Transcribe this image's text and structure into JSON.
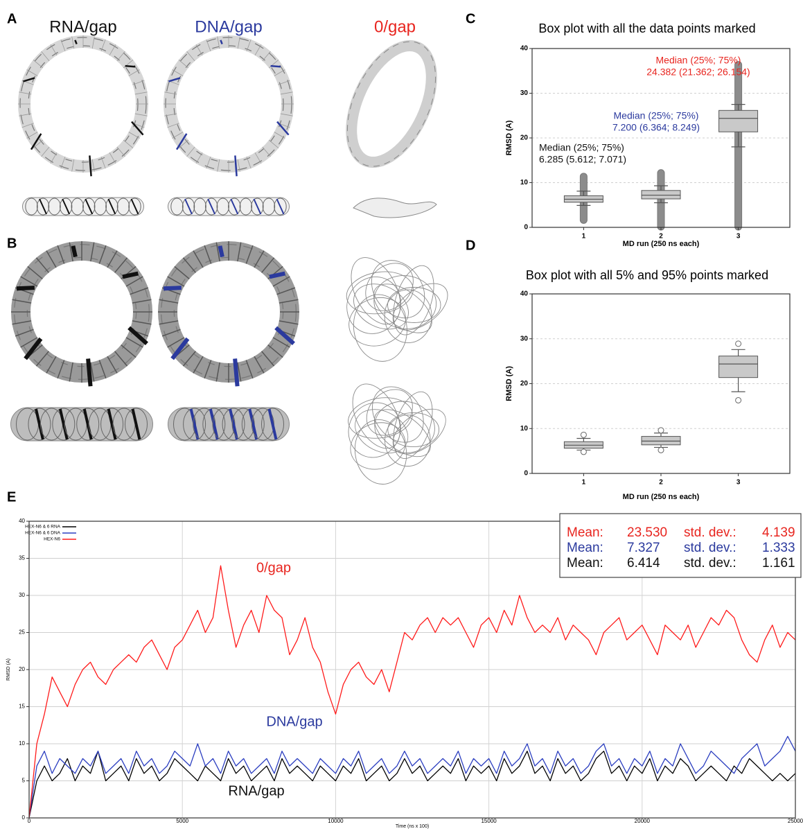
{
  "panel_labels": [
    "A",
    "B",
    "C",
    "D",
    "E"
  ],
  "structure_labels": [
    {
      "text": "RNA/gap",
      "color": "#111111"
    },
    {
      "text": "DNA/gap",
      "color": "#2b3a9e"
    },
    {
      "text": "0/gap",
      "color": "#e8251f"
    }
  ],
  "stats_box": {
    "rows": [
      {
        "color": "#e8251f",
        "cells": [
          "Mean:",
          "23.530",
          "std. dev.:",
          "4.139"
        ]
      },
      {
        "color": "#2b3a9e",
        "cells": [
          "Mean:",
          "7.327",
          "std. dev.:",
          "1.333"
        ]
      },
      {
        "color": "#111111",
        "cells": [
          "Mean:",
          "6.414",
          "std. dev.:",
          "1.161"
        ]
      }
    ]
  },
  "chart_data": [
    {
      "type": "box",
      "title": "Box plot with all the data points marked",
      "xlabel": "MD run (250 ns each)",
      "ylabel": "RMSD (A)",
      "categories": [
        "1",
        "2",
        "3"
      ],
      "ylim": [
        0,
        40
      ],
      "yticks": [
        0,
        10,
        20,
        30,
        40
      ],
      "grid": true,
      "color": "#c9c9c9",
      "boxes": [
        {
          "median": 6.285,
          "q1": 5.612,
          "q3": 7.071,
          "whisker_low": 4.9,
          "whisker_high": 8.1,
          "points_range": [
            1.5,
            11.5
          ]
        },
        {
          "median": 7.2,
          "q1": 6.364,
          "q3": 8.249,
          "whisker_low": 5.5,
          "whisker_high": 9.3,
          "points_range": [
            0,
            12.3
          ]
        },
        {
          "median": 24.382,
          "q1": 21.362,
          "q3": 26.154,
          "whisker_low": 18,
          "whisker_high": 27.5,
          "points_range": [
            0,
            36.5
          ]
        }
      ],
      "annotations": [
        {
          "text": "Median (25%; 75%)",
          "value_text": "6.285 (5.612; 7.071)",
          "color": "#111111"
        },
        {
          "text": "Median (25%; 75%)",
          "value_text": "7.200 (6.364; 8.249)",
          "color": "#2b3a9e"
        },
        {
          "text": "Median (25%; 75%)",
          "value_text": "24.382 (21.362; 26.154)",
          "color": "#e8251f"
        }
      ]
    },
    {
      "type": "box",
      "title": "Box plot with all 5% and 95% points marked",
      "xlabel": "MD run (250 ns each)",
      "ylabel": "RMSD (A)",
      "categories": [
        "1",
        "2",
        "3"
      ],
      "ylim": [
        0,
        40
      ],
      "yticks": [
        0,
        10,
        20,
        30,
        40
      ],
      "grid": true,
      "color": "#c9c9c9",
      "boxes": [
        {
          "median": 6.285,
          "q1": 5.612,
          "q3": 7.071,
          "whisker_low": 5.2,
          "whisker_high": 7.8,
          "outliers": [
            4.8,
            8.6
          ]
        },
        {
          "median": 7.2,
          "q1": 6.364,
          "q3": 8.249,
          "whisker_low": 5.8,
          "whisker_high": 9.0,
          "outliers": [
            5.2,
            9.6
          ]
        },
        {
          "median": 24.382,
          "q1": 21.362,
          "q3": 26.154,
          "whisker_low": 18.2,
          "whisker_high": 27.6,
          "outliers": [
            16.3,
            28.9
          ]
        }
      ]
    },
    {
      "type": "line",
      "xlabel": "Time (ns x 100)",
      "ylabel": "RMSD (A)",
      "xlim": [
        0,
        25000
      ],
      "ylim": [
        0,
        40
      ],
      "xticks": [
        0,
        5000,
        10000,
        15000,
        20000,
        25000
      ],
      "yticks": [
        0,
        5,
        10,
        15,
        20,
        25,
        30,
        35,
        40
      ],
      "grid": true,
      "legend": "upper left",
      "x": [
        0,
        250,
        500,
        750,
        1000,
        1250,
        1500,
        1750,
        2000,
        2250,
        2500,
        2750,
        3000,
        3250,
        3500,
        3750,
        4000,
        4250,
        4500,
        4750,
        5000,
        5250,
        5500,
        5750,
        6000,
        6250,
        6500,
        6750,
        7000,
        7250,
        7500,
        7750,
        8000,
        8250,
        8500,
        8750,
        9000,
        9250,
        9500,
        9750,
        10000,
        10250,
        10500,
        10750,
        11000,
        11250,
        11500,
        11750,
        12000,
        12250,
        12500,
        12750,
        13000,
        13250,
        13500,
        13750,
        14000,
        14250,
        14500,
        14750,
        15000,
        15250,
        15500,
        15750,
        16000,
        16250,
        16500,
        16750,
        17000,
        17250,
        17500,
        17750,
        18000,
        18250,
        18500,
        18750,
        19000,
        19250,
        19500,
        19750,
        20000,
        20250,
        20500,
        20750,
        21000,
        21250,
        21500,
        21750,
        22000,
        22250,
        22500,
        22750,
        23000,
        23250,
        23500,
        23750,
        24000,
        24250,
        24500,
        24750,
        25000
      ],
      "series": [
        {
          "name": "HEX-N6 & 6 RNA",
          "color": "#000000",
          "values": [
            0,
            5,
            7,
            5,
            6,
            8,
            5,
            7,
            6,
            9,
            5,
            6,
            7,
            5,
            8,
            6,
            7,
            5,
            6,
            8,
            7,
            6,
            5,
            7,
            6,
            5,
            8,
            6,
            7,
            5,
            6,
            7,
            5,
            8,
            6,
            7,
            6,
            5,
            7,
            6,
            5,
            7,
            6,
            8,
            5,
            6,
            7,
            5,
            6,
            8,
            6,
            7,
            5,
            6,
            7,
            6,
            8,
            5,
            7,
            6,
            7,
            5,
            8,
            6,
            7,
            9,
            6,
            7,
            5,
            8,
            6,
            7,
            5,
            6,
            8,
            9,
            6,
            7,
            5,
            7,
            6,
            8,
            5,
            7,
            6,
            8,
            7,
            5,
            6,
            7,
            6,
            5,
            7,
            6,
            8,
            7,
            6,
            5,
            6,
            5,
            6
          ]
        },
        {
          "name": "HEX-N6 & 6 DNA",
          "color": "#2b3ec0",
          "values": [
            0,
            7,
            9,
            6,
            8,
            7,
            6,
            8,
            7,
            9,
            6,
            7,
            8,
            6,
            9,
            7,
            8,
            6,
            7,
            9,
            8,
            7,
            10,
            7,
            8,
            6,
            9,
            7,
            8,
            6,
            7,
            8,
            6,
            9,
            7,
            8,
            7,
            6,
            8,
            7,
            6,
            8,
            7,
            9,
            6,
            7,
            8,
            6,
            7,
            9,
            7,
            8,
            6,
            7,
            8,
            7,
            9,
            6,
            8,
            7,
            8,
            6,
            9,
            7,
            8,
            10,
            7,
            8,
            6,
            9,
            7,
            8,
            6,
            7,
            9,
            10,
            7,
            8,
            6,
            8,
            7,
            9,
            6,
            8,
            7,
            10,
            8,
            6,
            7,
            9,
            8,
            7,
            6,
            8,
            9,
            10,
            7,
            8,
            9,
            11,
            9
          ]
        },
        {
          "name": "HEX-N6",
          "color": "#ff1a1a",
          "values": [
            0,
            10,
            14,
            19,
            17,
            15,
            18,
            20,
            21,
            19,
            18,
            20,
            21,
            22,
            21,
            23,
            24,
            22,
            20,
            23,
            24,
            26,
            28,
            25,
            27,
            34,
            28,
            23,
            26,
            28,
            25,
            30,
            28,
            27,
            22,
            24,
            27,
            23,
            21,
            17,
            14,
            18,
            20,
            21,
            19,
            18,
            20,
            17,
            21,
            25,
            24,
            26,
            27,
            25,
            27,
            26,
            27,
            25,
            23,
            26,
            27,
            25,
            28,
            26,
            30,
            27,
            25,
            26,
            25,
            27,
            24,
            26,
            25,
            24,
            22,
            25,
            26,
            27,
            24,
            25,
            26,
            24,
            22,
            26,
            25,
            24,
            26,
            23,
            25,
            27,
            26,
            28,
            27,
            24,
            22,
            21,
            24,
            26,
            23,
            25,
            24
          ]
        }
      ],
      "annotations": [
        {
          "text": "0/gap",
          "color": "#e8251f"
        },
        {
          "text": "DNA/gap",
          "color": "#2b3a9e"
        },
        {
          "text": "RNA/gap",
          "color": "#111111"
        }
      ]
    }
  ]
}
